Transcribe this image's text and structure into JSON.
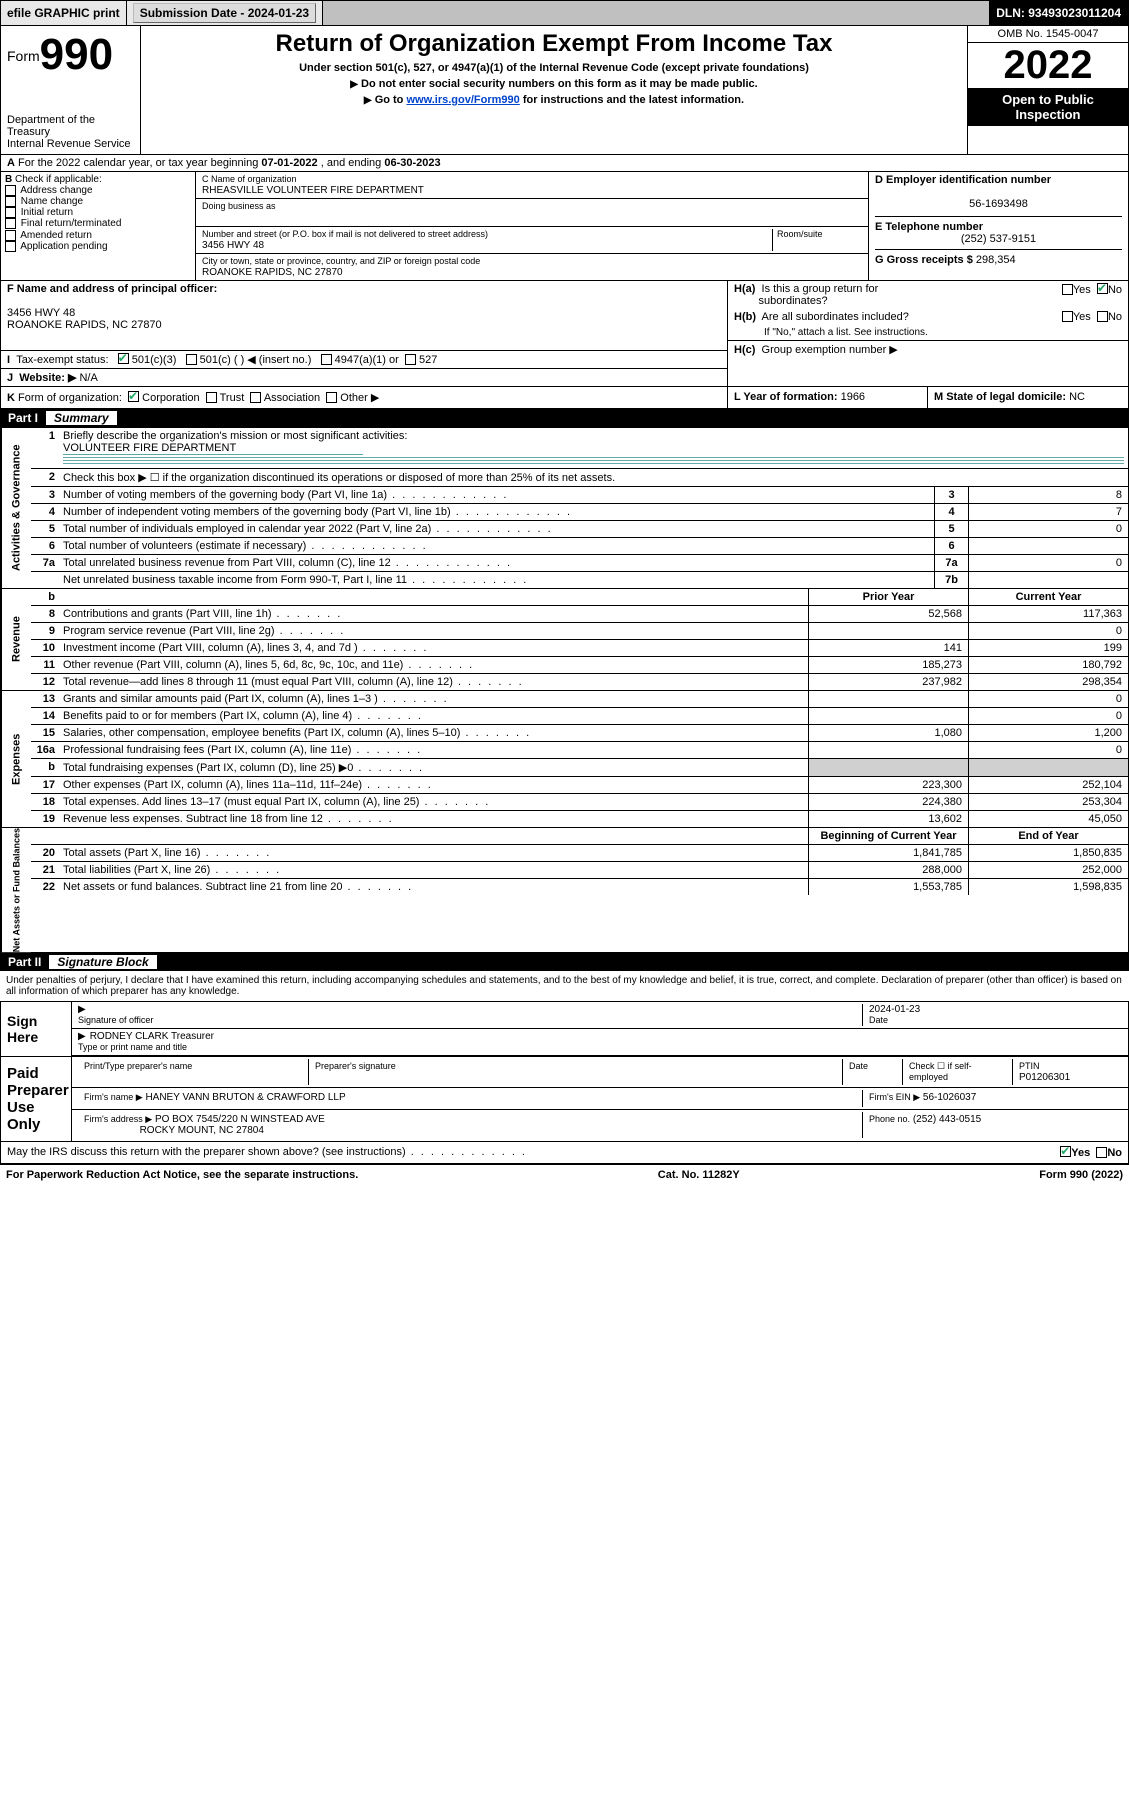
{
  "topbar": {
    "efile": "efile GRAPHIC print",
    "submission_label": "Submission Date - 2024-01-23",
    "dln": "DLN: 93493023011204"
  },
  "header": {
    "form_label": "Form",
    "form_number": "990",
    "dept": "Department of the Treasury",
    "irs": "Internal Revenue Service",
    "title": "Return of Organization Exempt From Income Tax",
    "sub1": "Under section 501(c), 527, or 4947(a)(1) of the Internal Revenue Code (except private foundations)",
    "sub2": "Do not enter social security numbers on this form as it may be made public.",
    "sub3_pre": "Go to ",
    "sub3_link": "www.irs.gov/Form990",
    "sub3_post": " for instructions and the latest information.",
    "omb": "OMB No. 1545-0047",
    "year": "2022",
    "open": "Open to Public Inspection"
  },
  "period": {
    "text_a": "For the 2022 calendar year, or tax year beginning ",
    "begin": "07-01-2022",
    "text_b": " , and ending ",
    "end": "06-30-2023"
  },
  "boxB": {
    "label": "Check if applicable:",
    "items": [
      "Address change",
      "Name change",
      "Initial return",
      "Final return/terminated",
      "Amended return",
      "Application pending"
    ],
    "letter": "B"
  },
  "boxC": {
    "name_label": "C Name of organization",
    "name": "RHEASVILLE VOLUNTEER FIRE DEPARTMENT",
    "dba_label": "Doing business as",
    "addr_label": "Number and street (or P.O. box if mail is not delivered to street address)",
    "room_label": "Room/suite",
    "addr": "3456 HWY 48",
    "city_label": "City or town, state or province, country, and ZIP or foreign postal code",
    "city": "ROANOKE RAPIDS, NC  27870"
  },
  "boxD": {
    "label": "D Employer identification number",
    "val": "56-1693498"
  },
  "boxE": {
    "label": "E Telephone number",
    "val": "(252) 537-9151"
  },
  "boxG": {
    "label": "G Gross receipts $",
    "val": "298,354"
  },
  "boxF": {
    "label": "F  Name and address of principal officer:",
    "line1": "3456 HWY 48",
    "line2": "ROANOKE RAPIDS, NC  27870"
  },
  "boxH": {
    "ha": "Is this a group return for",
    "ha2": "subordinates?",
    "hb": "Are all subordinates included?",
    "note": "If \"No,\" attach a list. See instructions.",
    "hc": "Group exemption number ▶",
    "yes": "Yes",
    "no": "No",
    "ha_pre": "H(a)",
    "hb_pre": "H(b)",
    "hc_pre": "H(c)"
  },
  "boxI": {
    "pre": "I",
    "label": "Tax-exempt status:",
    "a": "501(c)(3)",
    "b": "501(c) (  ) ◀ (insert no.)",
    "c": "4947(a)(1) or",
    "d": "527"
  },
  "boxJ": {
    "pre": "J",
    "label": "Website: ▶",
    "val": "N/A"
  },
  "boxK": {
    "pre": "K",
    "label": "Form of organization:",
    "opts": [
      "Corporation",
      "Trust",
      "Association",
      "Other ▶"
    ]
  },
  "boxL": {
    "label": "L Year of formation:",
    "val": "1966"
  },
  "boxM": {
    "label": "M State of legal domicile:",
    "val": "NC"
  },
  "part1": {
    "bar": "Part I",
    "title": "Summary"
  },
  "summary": {
    "q1_label": "Briefly describe the organization's mission or most significant activities:",
    "q1_val": "VOLUNTEER FIRE DEPARTMENT",
    "q2": "Check this box ▶ ☐  if the organization discontinued its operations or disposed of more than 25% of its net assets.",
    "rows_single": [
      {
        "n": "3",
        "d": "Number of voting members of the governing body (Part VI, line 1a)",
        "box": "3",
        "v": "8"
      },
      {
        "n": "4",
        "d": "Number of independent voting members of the governing body (Part VI, line 1b)",
        "box": "4",
        "v": "7"
      },
      {
        "n": "5",
        "d": "Total number of individuals employed in calendar year 2022 (Part V, line 2a)",
        "box": "5",
        "v": "0"
      },
      {
        "n": "6",
        "d": "Total number of volunteers (estimate if necessary)",
        "box": "6",
        "v": ""
      },
      {
        "n": "7a",
        "d": "Total unrelated business revenue from Part VIII, column (C), line 12",
        "box": "7a",
        "v": "0"
      },
      {
        "n": "",
        "d": "Net unrelated business taxable income from Form 990-T, Part I, line 11",
        "box": "7b",
        "v": ""
      }
    ],
    "head_b": "b",
    "head_prior": "Prior Year",
    "head_curr": "Current Year",
    "rev": [
      {
        "n": "8",
        "d": "Contributions and grants (Part VIII, line 1h)",
        "p": "52,568",
        "c": "117,363"
      },
      {
        "n": "9",
        "d": "Program service revenue (Part VIII, line 2g)",
        "p": "",
        "c": "0"
      },
      {
        "n": "10",
        "d": "Investment income (Part VIII, column (A), lines 3, 4, and 7d )",
        "p": "141",
        "c": "199"
      },
      {
        "n": "11",
        "d": "Other revenue (Part VIII, column (A), lines 5, 6d, 8c, 9c, 10c, and 11e)",
        "p": "185,273",
        "c": "180,792"
      },
      {
        "n": "12",
        "d": "Total revenue—add lines 8 through 11 (must equal Part VIII, column (A), line 12)",
        "p": "237,982",
        "c": "298,354"
      }
    ],
    "exp": [
      {
        "n": "13",
        "d": "Grants and similar amounts paid (Part IX, column (A), lines 1–3 )",
        "p": "",
        "c": "0"
      },
      {
        "n": "14",
        "d": "Benefits paid to or for members (Part IX, column (A), line 4)",
        "p": "",
        "c": "0"
      },
      {
        "n": "15",
        "d": "Salaries, other compensation, employee benefits (Part IX, column (A), lines 5–10)",
        "p": "1,080",
        "c": "1,200"
      },
      {
        "n": "16a",
        "d": "Professional fundraising fees (Part IX, column (A), line 11e)",
        "p": "",
        "c": "0"
      },
      {
        "n": "b",
        "d": "Total fundraising expenses (Part IX, column (D), line 25) ▶0",
        "p": "shade",
        "c": "shade"
      },
      {
        "n": "17",
        "d": "Other expenses (Part IX, column (A), lines 11a–11d, 11f–24e)",
        "p": "223,300",
        "c": "252,104"
      },
      {
        "n": "18",
        "d": "Total expenses. Add lines 13–17 (must equal Part IX, column (A), line 25)",
        "p": "224,380",
        "c": "253,304"
      },
      {
        "n": "19",
        "d": "Revenue less expenses. Subtract line 18 from line 12",
        "p": "13,602",
        "c": "45,050"
      }
    ],
    "head_begin": "Beginning of Current Year",
    "head_end": "End of Year",
    "net": [
      {
        "n": "20",
        "d": "Total assets (Part X, line 16)",
        "p": "1,841,785",
        "c": "1,850,835"
      },
      {
        "n": "21",
        "d": "Total liabilities (Part X, line 26)",
        "p": "288,000",
        "c": "252,000"
      },
      {
        "n": "22",
        "d": "Net assets or fund balances. Subtract line 21 from line 20",
        "p": "1,553,785",
        "c": "1,598,835"
      }
    ],
    "sidelabels": {
      "gov": "Activities & Governance",
      "rev": "Revenue",
      "exp": "Expenses",
      "net": "Net Assets or Fund Balances"
    }
  },
  "part2": {
    "bar": "Part II",
    "title": "Signature Block"
  },
  "penalty": "Under penalties of perjury, I declare that I have examined this return, including accompanying schedules and statements, and to the best of my knowledge and belief, it is true, correct, and complete. Declaration of preparer (other than officer) is based on all information of which preparer has any knowledge.",
  "sign": {
    "side": "Sign Here",
    "line1": "Signature of officer",
    "date": "2024-01-23",
    "date_label": "Date",
    "line2a": "RODNEY CLARK Treasurer",
    "line2b": "Type or print name and title"
  },
  "prep": {
    "side": "Paid Preparer Use Only",
    "h1": "Print/Type preparer's name",
    "h2": "Preparer's signature",
    "h3": "Date",
    "h4": "Check ☐ if self-employed",
    "h5": "PTIN",
    "ptin": "P01206301",
    "firm_label": "Firm's name  ▶",
    "firm": "HANEY VANN BRUTON & CRAWFORD LLP",
    "ein_label": "Firm's EIN ▶",
    "ein": "56-1026037",
    "addr_label": "Firm's address ▶",
    "addr1": "PO BOX 7545/220 N WINSTEAD AVE",
    "addr2": "ROCKY MOUNT, NC  27804",
    "phone_label": "Phone no.",
    "phone": "(252) 443-0515"
  },
  "discuss": {
    "q": "May the IRS discuss this return with the preparer shown above? (see instructions)",
    "yes": "Yes",
    "no": "No"
  },
  "footer": {
    "left": "For Paperwork Reduction Act Notice, see the separate instructions.",
    "mid": "Cat. No. 11282Y",
    "right": "Form 990 (2022)"
  },
  "colors": {
    "link": "#0044cc",
    "check": "#22aa66",
    "shade": "#d0d0d0"
  }
}
